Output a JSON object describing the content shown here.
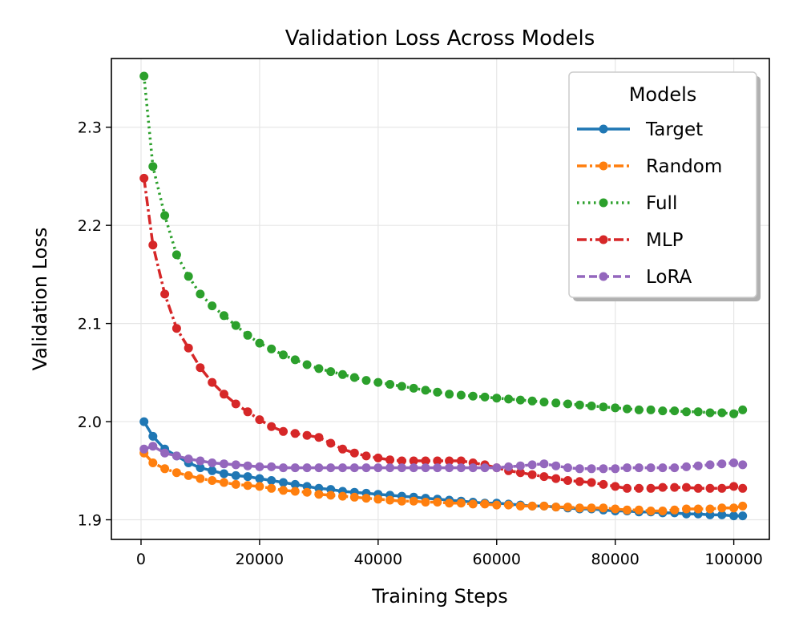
{
  "chart_data": {
    "type": "line",
    "title": "Validation Loss Across Models",
    "xlabel": "Training Steps",
    "ylabel": "Validation Loss",
    "xlim": [
      -5000,
      106000
    ],
    "ylim": [
      1.88,
      2.37
    ],
    "x_ticks": [
      0,
      20000,
      40000,
      60000,
      80000,
      100000
    ],
    "x_tick_labels": [
      "0",
      "20000",
      "40000",
      "60000",
      "80000",
      "100000"
    ],
    "y_ticks": [
      1.9,
      2.0,
      2.1,
      2.2,
      2.3
    ],
    "y_tick_labels": [
      "1.9",
      "2.0",
      "2.1",
      "2.2",
      "2.3"
    ],
    "grid": true,
    "legend": {
      "title": "Models",
      "position": "top-right"
    },
    "x": [
      500,
      2000,
      4000,
      6000,
      8000,
      10000,
      12000,
      14000,
      16000,
      18000,
      20000,
      22000,
      24000,
      26000,
      28000,
      30000,
      32000,
      34000,
      36000,
      38000,
      40000,
      42000,
      44000,
      46000,
      48000,
      50000,
      52000,
      54000,
      56000,
      58000,
      60000,
      62000,
      64000,
      66000,
      68000,
      70000,
      72000,
      74000,
      76000,
      78000,
      80000,
      82000,
      84000,
      86000,
      88000,
      90000,
      92000,
      94000,
      96000,
      98000,
      100000,
      101500
    ],
    "series": [
      {
        "name": "Target",
        "color": "#1f77b4",
        "dash": "solid",
        "values": [
          2.0,
          1.985,
          1.972,
          1.965,
          1.958,
          1.953,
          1.95,
          1.947,
          1.945,
          1.944,
          1.942,
          1.94,
          1.938,
          1.936,
          1.934,
          1.932,
          1.931,
          1.929,
          1.928,
          1.927,
          1.926,
          1.925,
          1.924,
          1.923,
          1.922,
          1.921,
          1.92,
          1.919,
          1.918,
          1.917,
          1.917,
          1.916,
          1.915,
          1.914,
          1.914,
          1.913,
          1.912,
          1.911,
          1.911,
          1.91,
          1.909,
          1.909,
          1.908,
          1.908,
          1.907,
          1.907,
          1.906,
          1.906,
          1.905,
          1.905,
          1.904,
          1.904
        ]
      },
      {
        "name": "Random",
        "color": "#ff7f0e",
        "dash": "dashdot",
        "values": [
          1.968,
          1.958,
          1.952,
          1.948,
          1.945,
          1.942,
          1.94,
          1.938,
          1.936,
          1.935,
          1.934,
          1.932,
          1.93,
          1.929,
          1.928,
          1.926,
          1.925,
          1.924,
          1.923,
          1.922,
          1.921,
          1.92,
          1.919,
          1.919,
          1.918,
          1.918,
          1.917,
          1.917,
          1.916,
          1.916,
          1.915,
          1.915,
          1.914,
          1.914,
          1.914,
          1.913,
          1.913,
          1.912,
          1.912,
          1.912,
          1.911,
          1.91,
          1.91,
          1.909,
          1.909,
          1.91,
          1.911,
          1.911,
          1.911,
          1.912,
          1.912,
          1.914
        ]
      },
      {
        "name": "Full",
        "color": "#2ca02c",
        "dash": "dotted",
        "values": [
          2.352,
          2.26,
          2.21,
          2.17,
          2.148,
          2.13,
          2.118,
          2.108,
          2.098,
          2.088,
          2.08,
          2.074,
          2.068,
          2.063,
          2.058,
          2.054,
          2.051,
          2.048,
          2.045,
          2.042,
          2.04,
          2.038,
          2.036,
          2.034,
          2.032,
          2.03,
          2.028,
          2.027,
          2.026,
          2.025,
          2.024,
          2.023,
          2.022,
          2.021,
          2.02,
          2.019,
          2.018,
          2.017,
          2.016,
          2.015,
          2.014,
          2.013,
          2.012,
          2.012,
          2.011,
          2.011,
          2.01,
          2.01,
          2.009,
          2.009,
          2.008,
          2.012
        ]
      },
      {
        "name": "MLP",
        "color": "#d62728",
        "dash": "dashdot",
        "values": [
          2.248,
          2.18,
          2.13,
          2.095,
          2.075,
          2.055,
          2.04,
          2.028,
          2.018,
          2.01,
          2.002,
          1.995,
          1.99,
          1.988,
          1.986,
          1.984,
          1.978,
          1.972,
          1.968,
          1.965,
          1.963,
          1.961,
          1.96,
          1.96,
          1.96,
          1.96,
          1.96,
          1.96,
          1.958,
          1.956,
          1.953,
          1.95,
          1.948,
          1.946,
          1.944,
          1.942,
          1.94,
          1.939,
          1.938,
          1.936,
          1.934,
          1.932,
          1.932,
          1.932,
          1.933,
          1.933,
          1.933,
          1.932,
          1.932,
          1.932,
          1.934,
          1.932
        ]
      },
      {
        "name": "LoRA",
        "color": "#9467bd",
        "dash": "dashed",
        "values": [
          1.972,
          1.975,
          1.968,
          1.965,
          1.962,
          1.96,
          1.958,
          1.957,
          1.956,
          1.955,
          1.954,
          1.954,
          1.953,
          1.953,
          1.953,
          1.953,
          1.953,
          1.953,
          1.953,
          1.953,
          1.953,
          1.953,
          1.953,
          1.953,
          1.953,
          1.953,
          1.953,
          1.953,
          1.953,
          1.953,
          1.953,
          1.954,
          1.955,
          1.956,
          1.957,
          1.955,
          1.953,
          1.952,
          1.952,
          1.952,
          1.952,
          1.953,
          1.953,
          1.953,
          1.953,
          1.953,
          1.954,
          1.955,
          1.956,
          1.957,
          1.958,
          1.956
        ]
      }
    ]
  }
}
